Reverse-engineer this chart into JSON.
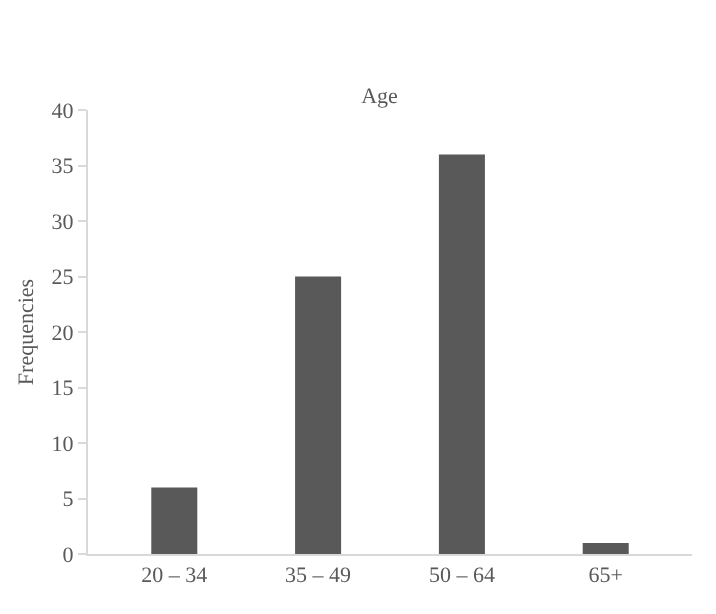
{
  "chart_data": {
    "type": "bar",
    "title": "Age",
    "ylabel": "Frequencies",
    "categories": [
      "20 – 34",
      "35 – 49",
      "50 – 64",
      "65+"
    ],
    "values": [
      6,
      25,
      36,
      1
    ],
    "color": "#595959",
    "ylim": [
      0,
      40
    ],
    "yticks": [
      0,
      5,
      10,
      15,
      20,
      25,
      30,
      35,
      40
    ]
  }
}
